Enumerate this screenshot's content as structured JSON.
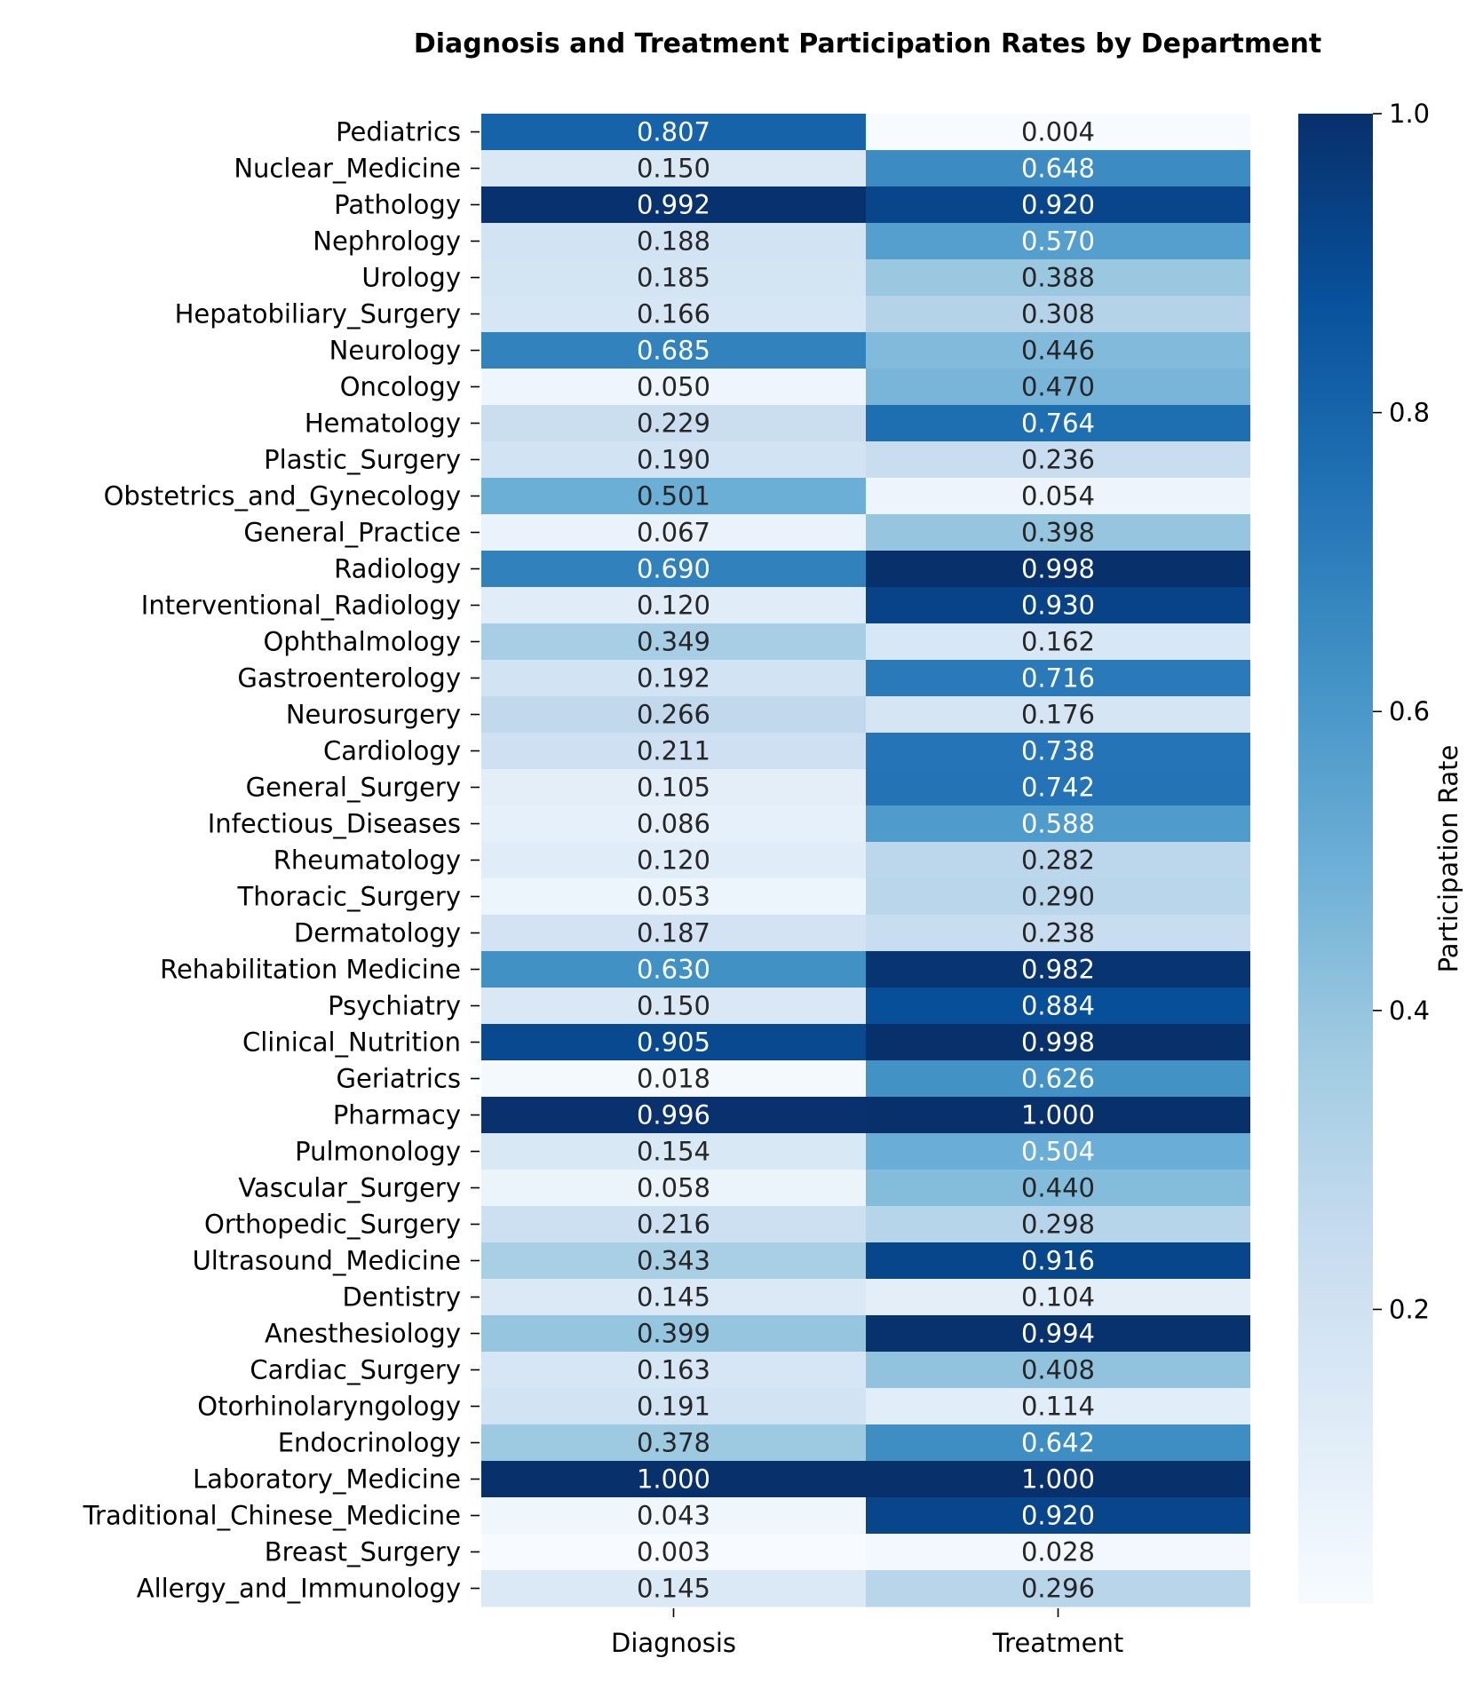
{
  "chart_data": {
    "type": "heatmap",
    "title": "Diagnosis and Treatment Participation Rates by Department",
    "columns": [
      "Diagnosis",
      "Treatment"
    ],
    "rows": [
      "Pediatrics",
      "Nuclear_Medicine",
      "Pathology",
      "Nephrology",
      "Urology",
      "Hepatobiliary_Surgery",
      "Neurology",
      "Oncology",
      "Hematology",
      "Plastic_Surgery",
      "Obstetrics_and_Gynecology",
      "General_Practice",
      "Radiology",
      "Interventional_Radiology",
      "Ophthalmology",
      "Gastroenterology",
      "Neurosurgery",
      "Cardiology",
      "General_Surgery",
      "Infectious_Diseases",
      "Rheumatology",
      "Thoracic_Surgery",
      "Dermatology",
      "Rehabilitation Medicine",
      "Psychiatry",
      "Clinical_Nutrition",
      "Geriatrics",
      "Pharmacy",
      "Pulmonology",
      "Vascular_Surgery",
      "Orthopedic_Surgery",
      "Ultrasound_Medicine",
      "Dentistry",
      "Anesthesiology",
      "Cardiac_Surgery",
      "Otorhinolaryngology",
      "Endocrinology",
      "Laboratory_Medicine",
      "Traditional_Chinese_Medicine",
      "Breast_Surgery",
      "Allergy_and_Immunology"
    ],
    "values": [
      [
        "0.807",
        "0.004"
      ],
      [
        "0.150",
        "0.648"
      ],
      [
        "0.992",
        "0.920"
      ],
      [
        "0.188",
        "0.570"
      ],
      [
        "0.185",
        "0.388"
      ],
      [
        "0.166",
        "0.308"
      ],
      [
        "0.685",
        "0.446"
      ],
      [
        "0.050",
        "0.470"
      ],
      [
        "0.229",
        "0.764"
      ],
      [
        "0.190",
        "0.236"
      ],
      [
        "0.501",
        "0.054"
      ],
      [
        "0.067",
        "0.398"
      ],
      [
        "0.690",
        "0.998"
      ],
      [
        "0.120",
        "0.930"
      ],
      [
        "0.349",
        "0.162"
      ],
      [
        "0.192",
        "0.716"
      ],
      [
        "0.266",
        "0.176"
      ],
      [
        "0.211",
        "0.738"
      ],
      [
        "0.105",
        "0.742"
      ],
      [
        "0.086",
        "0.588"
      ],
      [
        "0.120",
        "0.282"
      ],
      [
        "0.053",
        "0.290"
      ],
      [
        "0.187",
        "0.238"
      ],
      [
        "0.630",
        "0.982"
      ],
      [
        "0.150",
        "0.884"
      ],
      [
        "0.905",
        "0.998"
      ],
      [
        "0.018",
        "0.626"
      ],
      [
        "0.996",
        "1.000"
      ],
      [
        "0.154",
        "0.504"
      ],
      [
        "0.058",
        "0.440"
      ],
      [
        "0.216",
        "0.298"
      ],
      [
        "0.343",
        "0.916"
      ],
      [
        "0.145",
        "0.104"
      ],
      [
        "0.399",
        "0.994"
      ],
      [
        "0.163",
        "0.408"
      ],
      [
        "0.191",
        "0.114"
      ],
      [
        "0.378",
        "0.642"
      ],
      [
        "1.000",
        "1.000"
      ],
      [
        "0.043",
        "0.920"
      ],
      [
        "0.003",
        "0.028"
      ],
      [
        "0.145",
        "0.296"
      ]
    ],
    "colorbar": {
      "label": "Participation Rate",
      "range": [
        0.003,
        1.0
      ],
      "ticks": [
        "0.2",
        "0.4",
        "0.6",
        "0.8",
        "1.0"
      ],
      "colormap": "Blues",
      "low_color": "#f7fbff",
      "high_color": "#08306b"
    }
  }
}
